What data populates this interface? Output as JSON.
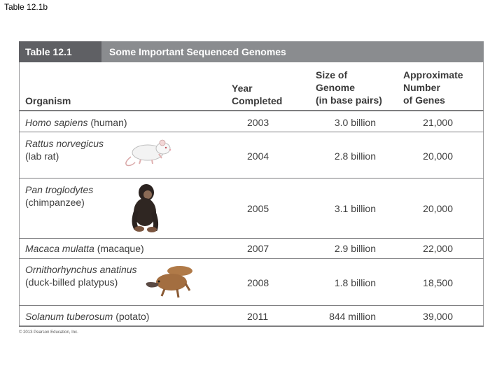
{
  "slide_title": "Table 12.1b",
  "table": {
    "tag": "Table 12.1",
    "title": "Some Important Sequenced Genomes",
    "headers": {
      "organism": "Organism",
      "year_l1": "Year",
      "year_l2": "Completed",
      "size_l1": "Size of",
      "size_l2": "Genome",
      "size_l3": "(in base pairs)",
      "genes_l1": "Approximate",
      "genes_l2": "Number",
      "genes_l3": "of Genes"
    },
    "rows": [
      {
        "sci": "Homo sapiens",
        "common": "(human)",
        "year": "2003",
        "size": "3.0 billion",
        "genes": "21,000"
      },
      {
        "sci": "Rattus norvegicus",
        "common": "(lab rat)",
        "year": "2004",
        "size": "2.8 billion",
        "genes": "20,000"
      },
      {
        "sci": "Pan troglodytes",
        "common": "(chimpanzee)",
        "year": "2005",
        "size": "3.1 billion",
        "genes": "20,000"
      },
      {
        "sci": "Macaca mulatta",
        "common": "(macaque)",
        "year": "2007",
        "size": "2.9 billion",
        "genes": "22,000"
      },
      {
        "sci": "Ornithorhynchus anatinus",
        "common": "(duck-billed platypus)",
        "year": "2008",
        "size": "1.8 billion",
        "genes": "18,500"
      },
      {
        "sci": "Solanum tuberosum",
        "common": "(potato)",
        "year": "2011",
        "size": "844 million",
        "genes": "39,000"
      }
    ]
  },
  "footer": "© 2013 Pearson Education, Inc.",
  "colors": {
    "header_bar": "#8a8c8f",
    "header_tag": "#5f6064",
    "rule": "#7e7e80"
  }
}
